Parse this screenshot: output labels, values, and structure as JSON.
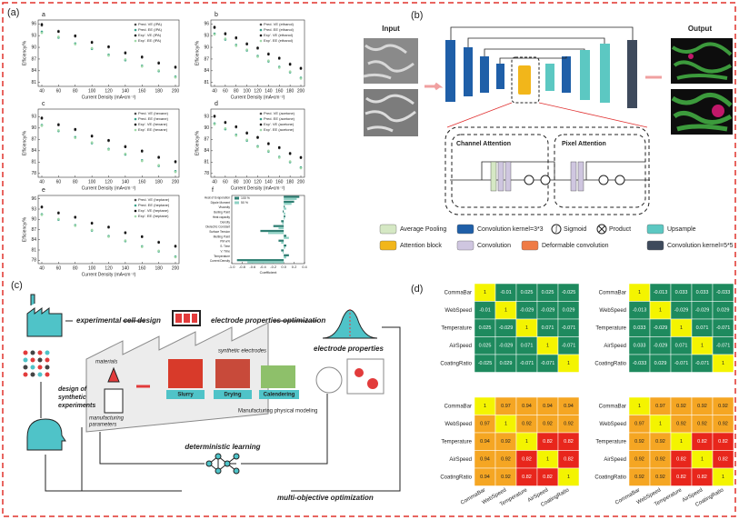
{
  "panel_labels": [
    "(a)",
    "(b)",
    "(c)",
    "(d)"
  ],
  "panel_a": {
    "xlabel": "Current Density (mA•cm⁻²)",
    "ylabel": "Efficiency/%",
    "x": [
      40,
      60,
      80,
      100,
      120,
      140,
      160,
      180,
      200
    ],
    "xticks": [
      40,
      60,
      80,
      100,
      120,
      140,
      160,
      180,
      200
    ],
    "plots": [
      {
        "label": "a",
        "ylim": [
          80,
          97
        ],
        "yticks": [
          81,
          84,
          87,
          90,
          93,
          96
        ],
        "series": [
          {
            "name": "Pred. VE (IPA)",
            "color": "#4a4a4a",
            "values": [
              95.6,
              94.2,
              92.8,
              91.4,
              90.0,
              88.7,
              87.4,
              86.1,
              84.8
            ]
          },
          {
            "name": "Pred. EE (IPA)",
            "color": "#3aa18a",
            "values": [
              94.0,
              92.5,
              91.0,
              89.6,
              88.1,
              86.7,
              85.3,
              83.9,
              82.5
            ]
          },
          {
            "name": "Exp'. VE (IPA)",
            "color": "#111111",
            "values": [
              95.9,
              94.0,
              93.0,
              91.2,
              90.2,
              88.5,
              87.6,
              85.9,
              85.0
            ]
          },
          {
            "name": "Exp'. EE (IPA)",
            "color": "#9ed8a8",
            "values": [
              93.7,
              92.7,
              90.8,
              89.8,
              87.9,
              86.9,
              85.1,
              84.1,
              82.3
            ]
          }
        ]
      },
      {
        "label": "b",
        "ylim": [
          80,
          97
        ],
        "yticks": [
          81,
          84,
          87,
          90,
          93,
          96
        ],
        "series": [
          {
            "name": "Pred. VE (ethanol)",
            "color": "#4a4a4a",
            "values": [
              95.0,
              93.6,
              92.3,
              91.0,
              89.7,
              88.4,
              87.1,
              85.8,
              84.5
            ]
          },
          {
            "name": "Pred. EE (ethanol)",
            "color": "#3aa18a",
            "values": [
              93.5,
              92.0,
              90.6,
              89.2,
              87.8,
              86.4,
              85.0,
              83.6,
              82.2
            ]
          },
          {
            "name": "Exp'. VE (ethanol)",
            "color": "#111111",
            "values": [
              95.2,
              93.4,
              92.5,
              90.8,
              89.9,
              88.2,
              87.3,
              85.6,
              84.7
            ]
          },
          {
            "name": "Exp'. EE (ethanol)",
            "color": "#9ed8a8",
            "values": [
              93.3,
              92.2,
              90.4,
              89.4,
              87.6,
              86.6,
              84.8,
              83.8,
              82.0
            ]
          }
        ]
      },
      {
        "label": "c",
        "ylim": [
          77,
          95
        ],
        "yticks": [
          78,
          81,
          84,
          87,
          90,
          93
        ],
        "series": [
          {
            "name": "Pred. VE (hexane)",
            "color": "#4a4a4a",
            "values": [
              92.5,
              91.0,
              89.5,
              88.0,
              86.6,
              85.2,
              83.8,
              82.4,
              81.0
            ]
          },
          {
            "name": "Pred. EE (hexane)",
            "color": "#3aa18a",
            "values": [
              90.8,
              89.2,
              87.6,
              86.0,
              84.5,
              83.0,
              81.5,
              80.0,
              78.6
            ]
          },
          {
            "name": "Exp'. VE (hexane)",
            "color": "#111111",
            "values": [
              92.7,
              90.8,
              89.7,
              87.8,
              86.8,
              85.0,
              84.0,
              82.2,
              81.2
            ]
          },
          {
            "name": "Exp'. EE (hexane)",
            "color": "#9ed8a8",
            "values": [
              90.6,
              89.4,
              87.4,
              86.2,
              84.3,
              83.2,
              81.3,
              80.2,
              78.4
            ]
          }
        ]
      },
      {
        "label": "d",
        "ylim": [
          77,
          95
        ],
        "yticks": [
          78,
          81,
          84,
          87,
          90,
          93
        ],
        "series": [
          {
            "name": "Pred. VE (acetone)",
            "color": "#4a4a4a",
            "values": [
              93.0,
              91.6,
              90.2,
              88.8,
              87.4,
              86.0,
              84.7,
              83.4,
              82.1
            ]
          },
          {
            "name": "Pred. EE (acetone)",
            "color": "#3aa18a",
            "values": [
              91.2,
              89.7,
              88.2,
              86.7,
              85.2,
              83.8,
              82.4,
              81.0,
              79.6
            ]
          },
          {
            "name": "Exp'. VE (acetone)",
            "color": "#111111",
            "values": [
              93.2,
              91.4,
              90.4,
              88.6,
              87.6,
              85.8,
              84.9,
              83.2,
              82.3
            ]
          },
          {
            "name": "Exp'. EE (acetone)",
            "color": "#9ed8a8",
            "values": [
              91.0,
              89.9,
              88.0,
              86.9,
              85.0,
              84.0,
              82.2,
              81.2,
              79.4
            ]
          }
        ]
      },
      {
        "label": "e",
        "ylim": [
          77,
          97
        ],
        "yticks": [
          78,
          81,
          84,
          87,
          90,
          93,
          96
        ],
        "series": [
          {
            "name": "Pred. VE (heptane)",
            "color": "#4a4a4a",
            "values": [
              93.5,
              92.0,
              90.5,
              89.0,
              87.6,
              86.2,
              84.8,
              83.4,
              82.0
            ]
          },
          {
            "name": "Pred. EE (heptane)",
            "color": "#3aa18a",
            "values": [
              91.5,
              89.9,
              88.3,
              86.7,
              85.1,
              83.6,
              82.1,
              80.6,
              79.1
            ]
          },
          {
            "name": "Exp'. VE (heptane)",
            "color": "#111111",
            "values": [
              93.7,
              91.8,
              90.7,
              88.8,
              87.8,
              86.0,
              85.0,
              83.2,
              82.2
            ]
          },
          {
            "name": "Exp'. EE (heptane)",
            "color": "#9ed8a8",
            "values": [
              91.3,
              90.1,
              88.1,
              86.9,
              84.9,
              83.8,
              81.9,
              80.8,
              78.9
            ]
          }
        ]
      }
    ],
    "coef_plot": {
      "label": "f",
      "xlabel": "Coefficient",
      "categories": [
        "Heat of Evaporation",
        "Dipole Moment",
        "Viscosity",
        "Boiling Point",
        "Heat capacity",
        "Density",
        "Dielectric Constant",
        "Surface Tension",
        "Melting Point",
        "PM w%",
        "S. Time",
        "V. Time",
        "Temperature",
        "Current Density"
      ],
      "series": [
        {
          "name": "100 %",
          "color": "#2f7f73",
          "values": [
            0.3,
            0.2,
            0.02,
            -0.02,
            0.03,
            -0.05,
            -0.2,
            -0.45,
            0.05,
            -0.1,
            0.05,
            -0.05,
            0.1,
            -0.9
          ]
        },
        {
          "name": "50 %",
          "color": "#8fd1c4",
          "values": [
            0.25,
            0.15,
            0.05,
            0.03,
            0.02,
            -0.03,
            -0.1,
            -0.3,
            0.1,
            -0.05,
            0.03,
            -0.02,
            0.05,
            -0.7
          ]
        }
      ],
      "xlim": [
        -1,
        0.4
      ],
      "xticks": [
        {
          "value": -1,
          "label": "-1.0"
        },
        -0.8,
        -0.6,
        -0.4,
        -0.2,
        {
          "value": 0,
          "label": "0.0"
        },
        0.2,
        0.4
      ]
    }
  },
  "panel_b": {
    "input": "Input",
    "output": "Output",
    "channel_attention": "Channel Attention",
    "pixel_attention": "Pixel Attention",
    "sigmoid": "Sigmoid",
    "product": "Product",
    "legend": [
      {
        "label": "Average Pooling",
        "color": "#d5e8c4"
      },
      {
        "label": "Convolution kernel=3*3",
        "color": "#1f5fa8"
      },
      {
        "label": "Upsample",
        "color": "#5cc8c2"
      },
      {
        "label": "Attention block",
        "color": "#f2b61a"
      },
      {
        "label": "Convolution",
        "color": "#cfc6e0"
      },
      {
        "label": "Deformable convolution",
        "color": "#ef7b45"
      },
      {
        "label": "Convolution kernel=5*5",
        "color": "#3e4a5c"
      }
    ]
  },
  "panel_c": {
    "experimental_cell_design": "experimental cell design",
    "electrode_properties_optimization": "electrode properties optimization",
    "design_lines": [
      "design of",
      "synthetic",
      "experiments"
    ],
    "materials": "materials",
    "manufacturing_parameters": [
      "manufacturing",
      "parameters"
    ],
    "synthetic_electrodes": "synthetic electrodes",
    "steps": [
      "Slurry",
      "Drying",
      "Calendering"
    ],
    "modeling": "Manufacturing physical modeling",
    "electrode_properties": "electrode properties",
    "deterministic_learning": "deterministic learning",
    "multi_objective": "multi-objective optimization"
  },
  "panel_d": {
    "variables": [
      "CommaBar",
      "WebSpeed",
      "Temperature",
      "AirSpeed",
      "CoatingRatio"
    ],
    "heatmaps": [
      {
        "values": [
          [
            1,
            -0.01,
            0.025,
            0.025,
            -0.025
          ],
          [
            -0.01,
            1,
            -0.029,
            -0.029,
            0.029
          ],
          [
            0.025,
            -0.029,
            1,
            0.071,
            -0.071
          ],
          [
            0.025,
            -0.029,
            0.071,
            1,
            -0.071
          ],
          [
            -0.025,
            0.029,
            -0.071,
            -0.071,
            1
          ]
        ]
      },
      {
        "values": [
          [
            1,
            -0.013,
            0.033,
            0.033,
            -0.033
          ],
          [
            -0.013,
            1,
            -0.029,
            -0.029,
            0.029
          ],
          [
            0.033,
            -0.029,
            1,
            0.071,
            -0.071
          ],
          [
            0.033,
            -0.029,
            0.071,
            1,
            -0.071
          ],
          [
            -0.033,
            0.029,
            -0.071,
            -0.071,
            1
          ]
        ]
      },
      {
        "values": [
          [
            1,
            0.97,
            0.94,
            0.94,
            0.94
          ],
          [
            0.97,
            1,
            0.92,
            0.92,
            0.92
          ],
          [
            0.94,
            0.92,
            1,
            0.82,
            0.82
          ],
          [
            0.94,
            0.92,
            0.82,
            1,
            0.82
          ],
          [
            0.94,
            0.92,
            0.82,
            0.82,
            1
          ]
        ]
      },
      {
        "values": [
          [
            1,
            0.97,
            0.92,
            0.92,
            0.92
          ],
          [
            0.97,
            1,
            0.92,
            0.92,
            0.92
          ],
          [
            0.92,
            0.92,
            1,
            0.82,
            0.82
          ],
          [
            0.92,
            0.92,
            0.82,
            1,
            0.82
          ],
          [
            0.92,
            0.92,
            0.82,
            0.82,
            1
          ]
        ]
      }
    ]
  }
}
